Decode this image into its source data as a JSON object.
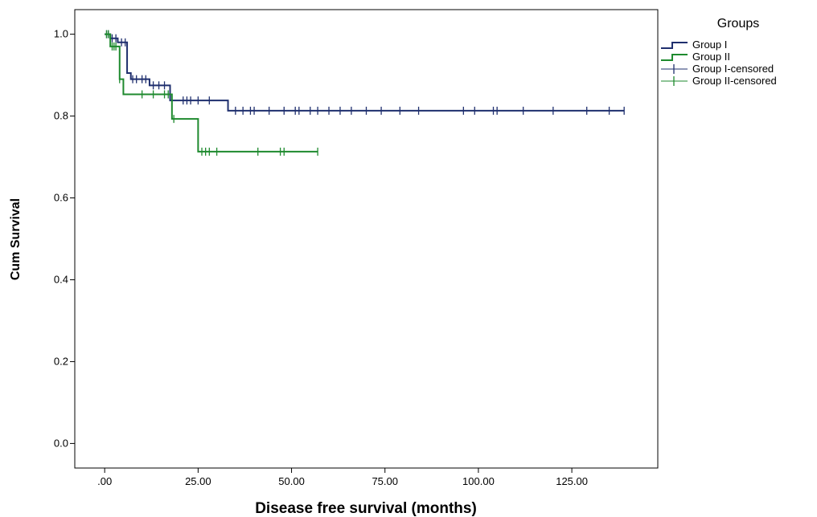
{
  "chart_data": {
    "type": "line",
    "subtype": "kaplan-meier step curve",
    "xlabel": "Disease free survival (months)",
    "ylabel": "Cum Survival",
    "xlim": [
      -8,
      148
    ],
    "ylim": [
      -0.06,
      1.06
    ],
    "x_ticks": [
      0,
      25,
      50,
      75,
      100,
      125
    ],
    "x_tick_labels": [
      ".00",
      "25.00",
      "50.00",
      "75.00",
      "100.00",
      "125.00"
    ],
    "y_ticks": [
      0,
      0.2,
      0.4,
      0.6,
      0.8,
      1.0
    ],
    "y_tick_labels": [
      "0.0",
      "0.2",
      "0.4",
      "0.6",
      "0.8",
      "1.0"
    ],
    "grid": false,
    "legend_title": "Groups",
    "legend_position": "right",
    "series": [
      {
        "name": "Group I",
        "color": "#1f2f6e",
        "steps": [
          [
            0,
            1.0
          ],
          [
            1.5,
            0.99
          ],
          [
            3.5,
            0.98
          ],
          [
            6,
            0.905
          ],
          [
            7,
            0.89
          ],
          [
            12,
            0.875
          ],
          [
            17.5,
            0.838
          ],
          [
            33,
            0.813
          ],
          [
            139,
            0.813
          ]
        ],
        "censored": [
          0.5,
          1,
          2,
          3,
          4.5,
          5.5,
          7.5,
          8.5,
          10,
          11,
          13,
          14.5,
          16,
          21,
          22,
          23,
          25,
          28,
          35,
          37,
          39,
          40,
          44,
          48,
          51,
          52,
          55,
          57,
          60,
          63,
          66,
          70,
          74,
          79,
          84,
          96,
          99,
          104,
          105,
          112,
          120,
          129,
          135,
          139
        ]
      },
      {
        "name": "Group II",
        "color": "#1e8a2e",
        "steps": [
          [
            0,
            1.0
          ],
          [
            1.5,
            0.97
          ],
          [
            4,
            0.89
          ],
          [
            5,
            0.853
          ],
          [
            18,
            0.793
          ],
          [
            25,
            0.713
          ],
          [
            57,
            0.713
          ]
        ],
        "censored": [
          0.5,
          1,
          2,
          2.5,
          3,
          4,
          10,
          13,
          16,
          17,
          18.5,
          26,
          27,
          28,
          30,
          41,
          47,
          48,
          57
        ]
      }
    ],
    "legend_entries": [
      "Group I",
      "Group II",
      "Group I-censored",
      "Group II-censored"
    ]
  }
}
